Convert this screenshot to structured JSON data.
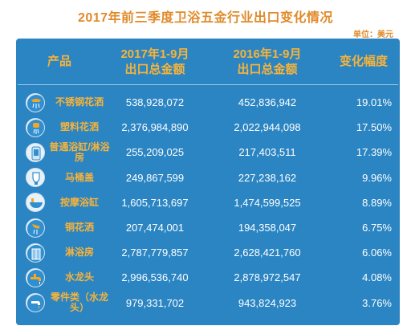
{
  "title": "2017年前三季度卫浴五金行业出口变化情况",
  "unit": "单位：美元",
  "chart_data": {
    "type": "table",
    "columns": {
      "product": "产品",
      "y2017_line1": "2017年1-9月",
      "y2017_line2": "出口总金额",
      "y2016_line1": "2016年1-9月",
      "y2016_line2": "出口总金额",
      "change": "变化幅度"
    },
    "rows": [
      {
        "product": "不锈钢花洒",
        "icon": "shower-head-icon",
        "v2017": "538,928,072",
        "v2016": "452,836,942",
        "change": "19.01%"
      },
      {
        "product": "塑料花洒",
        "icon": "shower-icon",
        "v2017": "2,376,984,890",
        "v2016": "2,022,944,098",
        "change": "17.50%"
      },
      {
        "product": "普通浴缸/淋浴房",
        "icon": "bathtub-icon",
        "v2017": "255,209,025",
        "v2016": "217,403,511",
        "change": "17.39%"
      },
      {
        "product": "马桶盖",
        "icon": "toilet-icon",
        "v2017": "249,867,599",
        "v2016": "227,238,162",
        "change": "9.96%"
      },
      {
        "product": "按摩浴缸",
        "icon": "massage-tub-icon",
        "v2017": "1,605,713,697",
        "v2016": "1,474,599,525",
        "change": "8.89%"
      },
      {
        "product": "铜花洒",
        "icon": "copper-shower-icon",
        "v2017": "207,474,001",
        "v2016": "194,358,047",
        "change": "6.75%"
      },
      {
        "product": "淋浴房",
        "icon": "shower-room-icon",
        "v2017": "2,787,779,857",
        "v2016": "2,628,421,760",
        "change": "6.06%"
      },
      {
        "product": "水龙头",
        "icon": "faucet-icon",
        "v2017": "2,996,536,740",
        "v2016": "2,878,972,547",
        "change": "4.08%"
      },
      {
        "product": "零件类（水龙头）",
        "icon": "faucet-part-icon",
        "v2017": "979,331,702",
        "v2016": "943,824,923",
        "change": "3.76%"
      }
    ]
  }
}
